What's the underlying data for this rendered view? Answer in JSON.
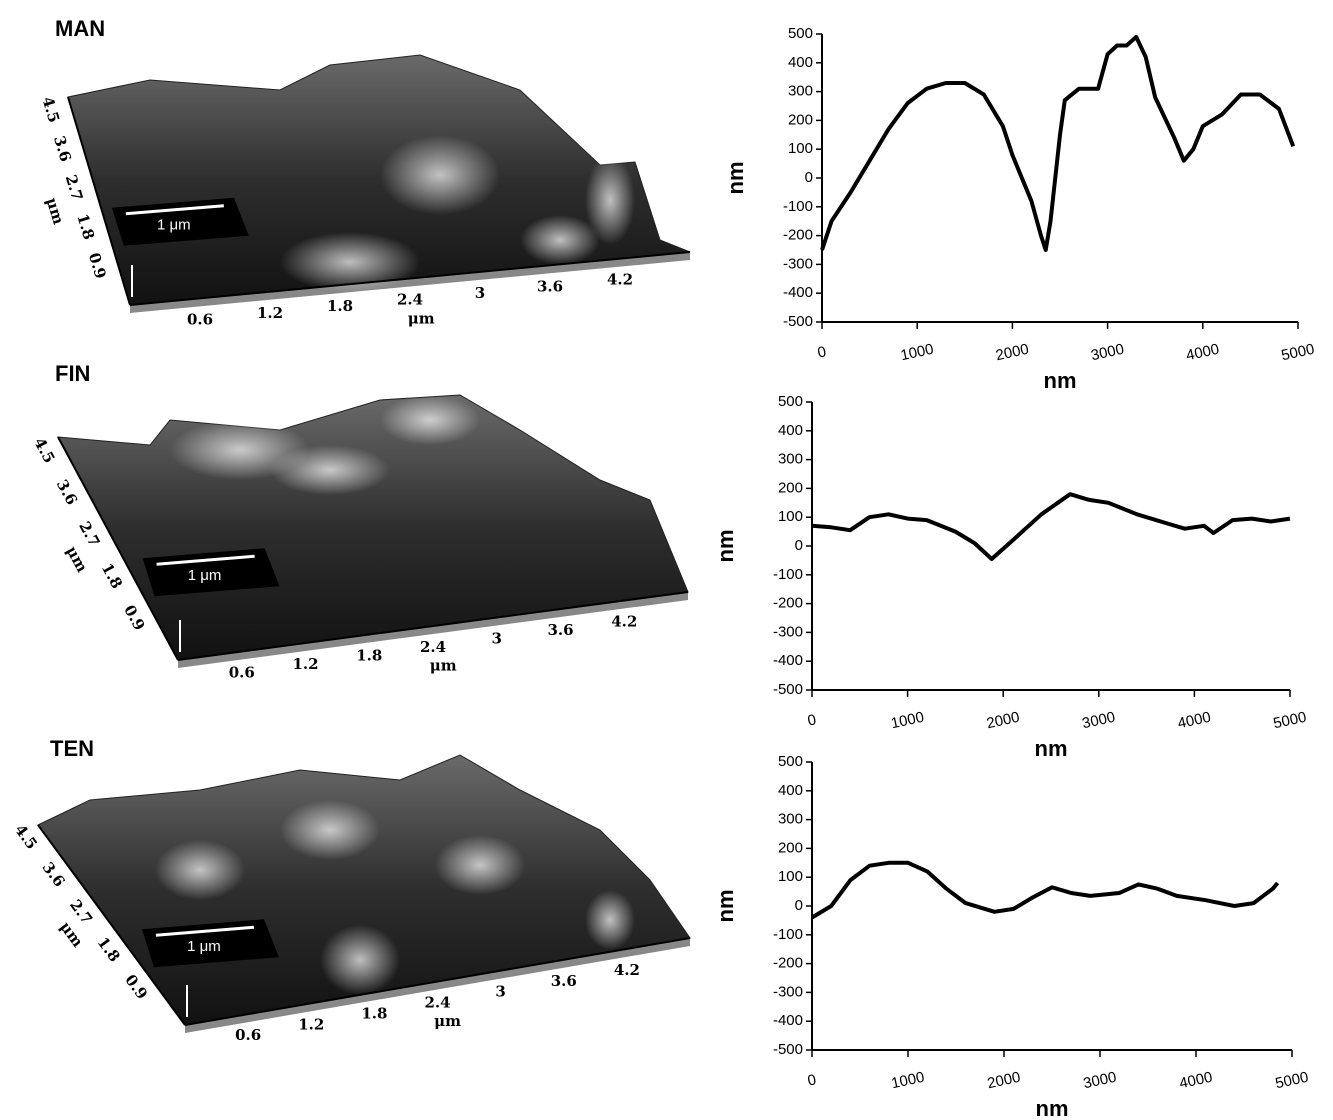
{
  "chart_data": [
    {
      "type": "line",
      "xlabel": "nm",
      "ylabel": "nm",
      "x": [
        0,
        100,
        300,
        500,
        700,
        900,
        1100,
        1300,
        1500,
        1700,
        1900,
        2000,
        2200,
        2300,
        2350,
        2400,
        2500,
        2550,
        2700,
        2900,
        3000,
        3100,
        3200,
        3300,
        3400,
        3500,
        3700,
        3800,
        3900,
        4000,
        4200,
        4400,
        4600,
        4800,
        4950
      ],
      "values": [
        -250,
        -150,
        -50,
        60,
        170,
        260,
        310,
        330,
        330,
        290,
        180,
        80,
        -80,
        -200,
        -250,
        -150,
        150,
        270,
        310,
        310,
        430,
        460,
        460,
        490,
        420,
        280,
        140,
        60,
        100,
        180,
        220,
        290,
        290,
        240,
        110
      ],
      "color": "#000000",
      "xlim": [
        0,
        5000
      ],
      "ylim": [
        -500,
        500
      ],
      "xticks": [
        0,
        1000,
        2000,
        3000,
        4000,
        5000
      ],
      "yticks": [
        -500,
        -400,
        -300,
        -200,
        -100,
        0,
        100,
        200,
        300,
        400,
        500
      ]
    },
    {
      "type": "line",
      "xlabel": "nm",
      "ylabel": "nm",
      "x": [
        0,
        200,
        400,
        600,
        800,
        1000,
        1200,
        1500,
        1700,
        1880,
        2100,
        2400,
        2700,
        2900,
        3100,
        3400,
        3700,
        3900,
        4100,
        4200,
        4400,
        4600,
        4800,
        5000
      ],
      "values": [
        70,
        65,
        55,
        100,
        110,
        95,
        90,
        50,
        10,
        -45,
        20,
        110,
        180,
        160,
        150,
        110,
        80,
        60,
        70,
        45,
        90,
        95,
        85,
        95
      ],
      "color": "#000000",
      "xlim": [
        0,
        5000
      ],
      "ylim": [
        -500,
        500
      ],
      "xticks": [
        0,
        1000,
        2000,
        3000,
        4000,
        5000
      ],
      "yticks": [
        -500,
        -400,
        -300,
        -200,
        -100,
        0,
        100,
        200,
        300,
        400,
        500
      ]
    },
    {
      "type": "line",
      "xlabel": "nm",
      "ylabel": "nm",
      "x": [
        0,
        200,
        400,
        600,
        800,
        1000,
        1200,
        1400,
        1600,
        1900,
        2100,
        2300,
        2500,
        2700,
        2900,
        3200,
        3400,
        3600,
        3800,
        4100,
        4400,
        4600,
        4800,
        4850
      ],
      "values": [
        -40,
        0,
        90,
        140,
        150,
        150,
        120,
        60,
        10,
        -20,
        -10,
        30,
        65,
        45,
        35,
        45,
        75,
        60,
        35,
        20,
        0,
        10,
        60,
        80
      ],
      "color": "#000000",
      "xlim": [
        0,
        5000
      ],
      "ylim": [
        -500,
        500
      ],
      "xticks": [
        0,
        1000,
        2000,
        3000,
        4000,
        5000
      ],
      "yticks": [
        -500,
        -400,
        -300,
        -200,
        -100,
        0,
        100,
        200,
        300,
        400,
        500
      ]
    }
  ],
  "afm_panels": [
    {
      "label": "MAN",
      "xticks": [
        0.6,
        1.2,
        1.8,
        2.4,
        3,
        3.6,
        4.2
      ],
      "yticks": [
        0.9,
        1.8,
        2.7,
        3.6,
        4.5
      ],
      "xlabel": "μm",
      "ylabel": "μm",
      "scale_bar": "1 μm"
    },
    {
      "label": "FIN",
      "xticks": [
        0.6,
        1.2,
        1.8,
        2.4,
        3,
        3.6,
        4.2
      ],
      "yticks": [
        0.9,
        1.8,
        2.7,
        3.6,
        4.5
      ],
      "xlabel": "μm",
      "ylabel": "μm",
      "scale_bar": "1 μm"
    },
    {
      "label": "TEN",
      "xticks": [
        0.6,
        1.2,
        1.8,
        2.4,
        3,
        3.6,
        4.2
      ],
      "yticks": [
        0.9,
        1.8,
        2.7,
        3.6,
        4.5
      ],
      "xlabel": "μm",
      "ylabel": "μm",
      "scale_bar": "1 μm"
    }
  ]
}
